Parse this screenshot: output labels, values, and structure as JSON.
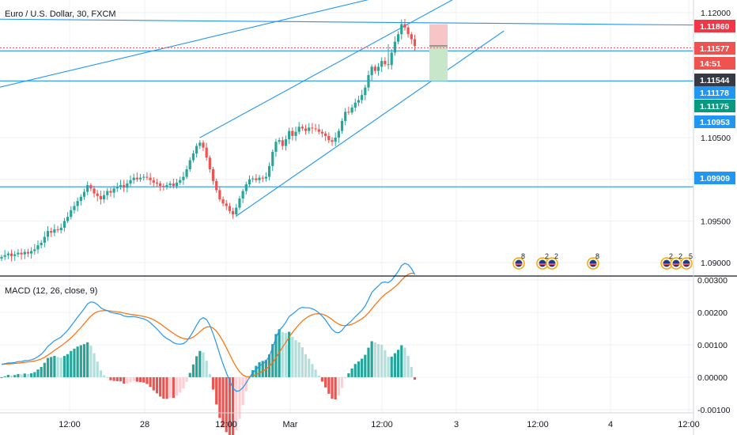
{
  "header": {
    "symbol_title": "Euro / U.S. Dollar, 30, FXCM",
    "macd_title": "MACD (12, 26, close, 9)"
  },
  "colors": {
    "trendline": "#2196f3",
    "up_candle": "#26a69a",
    "down_candle": "#ef5350",
    "macd_line": "#2196f3",
    "signal_line": "#ff6d00",
    "grid": "#eef0f3",
    "axis_text": "#131722"
  },
  "chart_data": [
    {
      "type": "candlestick",
      "title": "Euro / U.S. Dollar, 30, FXCM",
      "ylim": [
        1.0885,
        1.1215
      ],
      "y_ticks": [
        {
          "value": 1.12,
          "label": "1.12000"
        },
        {
          "value": 1.105,
          "label": "1.10500"
        },
        {
          "value": 1.1,
          "label": "1.10000"
        },
        {
          "value": 1.095,
          "label": "1.09500"
        },
        {
          "value": 1.09,
          "label": "1.09000"
        }
      ],
      "x_labels": [
        "12:00",
        "28",
        "12:00",
        "Mar",
        "12:00",
        "3",
        "12:00",
        "4",
        "12:00"
      ],
      "grid": true,
      "price_tags": [
        {
          "label": "1.11860",
          "value": 1.1186,
          "color": "#f23645"
        },
        {
          "label": "1.11577",
          "value": 1.11577,
          "color": "#ef5350"
        },
        {
          "label": "14:51",
          "value": 1.11435,
          "color": "#ef5350"
        },
        {
          "label": "1.11544",
          "value": 1.11544,
          "color": "#363a45"
        },
        {
          "label": "1.11178",
          "value": 1.11178,
          "color": "#2196f3"
        },
        {
          "label": "1.11175",
          "value": 1.11175,
          "color": "#089981"
        },
        {
          "label": "1.10953",
          "value": 1.10953,
          "color": "#2196f3"
        },
        {
          "label": "1.09909",
          "value": 1.09909,
          "color": "#2196f3"
        }
      ],
      "horizontal_lines": [
        1.0991,
        1.1118,
        1.1154
      ],
      "events": [
        {
          "label": "8"
        },
        {
          "label": "2"
        },
        {
          "label": "2"
        },
        {
          "label": "8"
        },
        {
          "label": "2"
        },
        {
          "label": "2"
        },
        {
          "label": "5"
        }
      ],
      "closes": [
        1.0907,
        1.0909,
        1.0911,
        1.0908,
        1.091,
        1.0912,
        1.091,
        1.0913,
        1.0911,
        1.0914,
        1.0916,
        1.0921,
        1.0924,
        1.0931,
        1.0938,
        1.0936,
        1.094,
        1.0939,
        1.0942,
        1.095,
        1.0955,
        1.0963,
        1.0968,
        1.0974,
        1.0979,
        1.0985,
        1.0993,
        1.0989,
        1.0983,
        1.098,
        1.0976,
        1.0981,
        1.0986,
        1.0984,
        1.0989,
        1.0991,
        1.0993,
        1.099,
        1.0995,
        1.0999,
        1.1002,
        1.1,
        1.1002,
        1.1003,
        1.1002,
        1.0999,
        1.0996,
        1.0995,
        1.0992,
        1.0991,
        1.0993,
        1.0995,
        1.0992,
        1.0996,
        1.0999,
        1.1003,
        1.1012,
        1.1023,
        1.1031,
        1.104,
        1.1044,
        1.1038,
        1.1026,
        1.1012,
        1.0998,
        1.0987,
        1.0976,
        1.0971,
        1.0968,
        1.0962,
        1.0958,
        1.0966,
        1.0977,
        1.0986,
        1.0994,
        1.1,
        1.1001,
        1.0999,
        1.1002,
        1.1001,
        1.1003,
        1.1016,
        1.1033,
        1.1045,
        1.1047,
        1.104,
        1.1048,
        1.1058,
        1.1052,
        1.1057,
        1.1063,
        1.1061,
        1.1058,
        1.1062,
        1.1061,
        1.106,
        1.1057,
        1.1055,
        1.1052,
        1.1047,
        1.1045,
        1.105,
        1.1058,
        1.107,
        1.1081,
        1.108,
        1.1086,
        1.1092,
        1.1095,
        1.1101,
        1.111,
        1.1125,
        1.1135,
        1.113,
        1.1135,
        1.1142,
        1.1138,
        1.1137,
        1.1152,
        1.1165,
        1.1174,
        1.1186,
        1.1182,
        1.1174,
        1.1168,
        1.116
      ]
    },
    {
      "type": "macd",
      "title": "MACD (12, 26, close, 9)",
      "ylim": [
        -0.0011,
        0.0031
      ],
      "y_ticks": [
        {
          "value": 0.003,
          "label": "0.00300"
        },
        {
          "value": 0.002,
          "label": "0.00200"
        },
        {
          "value": 0.001,
          "label": "0.00100"
        },
        {
          "value": 0.0,
          "label": "0.00000"
        },
        {
          "value": -0.001,
          "label": "-0.00100"
        }
      ],
      "series": [
        {
          "name": "MACD"
        },
        {
          "name": "Signal"
        },
        {
          "name": "Histogram"
        }
      ]
    }
  ]
}
